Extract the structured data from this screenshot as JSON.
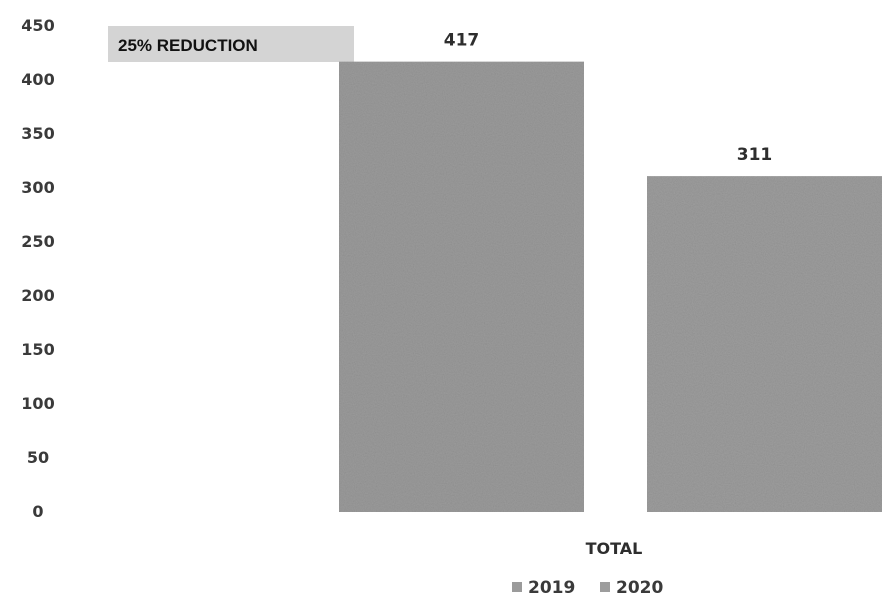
{
  "chart_data": {
    "type": "bar",
    "categories": [
      "TOTAL"
    ],
    "series": [
      {
        "name": "2019",
        "values": [
          417
        ],
        "color": "#9b9b9b"
      },
      {
        "name": "2020",
        "values": [
          311
        ],
        "color": "#9d9d9d"
      }
    ],
    "ylim": [
      0,
      450
    ],
    "yticks": [
      0,
      50,
      100,
      150,
      200,
      250,
      300,
      350,
      400,
      450
    ],
    "grid": false,
    "legend_position": "bottom",
    "annotation": {
      "text": "25% REDUCTION",
      "background": "#d4d4d4"
    }
  }
}
